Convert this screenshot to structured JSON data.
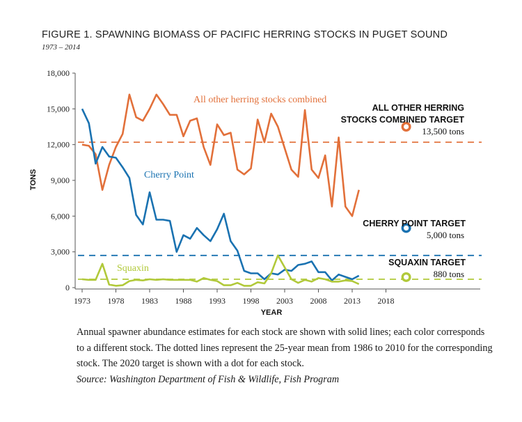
{
  "figure": {
    "title": "FIGURE 1. SPAWNING BIOMASS OF PACIFIC HERRING STOCKS IN PUGET SOUND",
    "subtitle": "1973 – 2014",
    "caption": "Annual spawner abundance estimates for each stock are shown with solid lines; each color corresponds to a different stock. The dotted lines represent the 25-year mean from 1986 to 2010 for the corresponding stock. The 2020 target is shown with a dot for each stock.",
    "source": "Source: Washington Department of Fish & Wildlife, Fish Program"
  },
  "chart_data": {
    "type": "line",
    "title": "FIGURE 1. SPAWNING BIOMASS OF PACIFIC HERRING STOCKS IN PUGET SOUND",
    "xlabel": "YEAR",
    "ylabel": "TONS",
    "xlim": [
      1973,
      2021
    ],
    "ylim": [
      0,
      18000
    ],
    "xticks": [
      "1973",
      "1978",
      "1983",
      "1988",
      "1993",
      "1998",
      "2003",
      "2008",
      "2013",
      "2018"
    ],
    "yticks": [
      "0",
      "3,000",
      "6,000",
      "9,000",
      "12,000",
      "15,000",
      "18,000"
    ],
    "grid": false,
    "series": [
      {
        "name": "All other herring stocks combined",
        "color": "#e2703a",
        "x": [
          1973,
          1974,
          1975,
          1976,
          1977,
          1978,
          1979,
          1980,
          1981,
          1982,
          1983,
          1984,
          1985,
          1986,
          1987,
          1988,
          1989,
          1990,
          1991,
          1992,
          1993,
          1994,
          1995,
          1996,
          1997,
          1998,
          1999,
          2000,
          2001,
          2002,
          2003,
          2004,
          2005,
          2006,
          2007,
          2008,
          2009,
          2010,
          2011,
          2012,
          2013,
          2014
        ],
        "values": [
          12000,
          11900,
          11200,
          8200,
          10300,
          11800,
          12900,
          16200,
          14300,
          14000,
          15000,
          16200,
          15400,
          14500,
          14500,
          12700,
          14000,
          14200,
          11800,
          10300,
          13700,
          12800,
          13000,
          9900,
          9500,
          10000,
          14100,
          12200,
          14600,
          13500,
          11700,
          9900,
          9300,
          14900,
          9900,
          9200,
          11100,
          6800,
          12600,
          6800,
          6000,
          8200
        ],
        "mean": 12200,
        "target_label": "13,500 tons",
        "target_value": 13500,
        "target_name": "ALL OTHER HERRING STOCKS COMBINED TARGET"
      },
      {
        "name": "Cherry Point",
        "color": "#1a72b1",
        "x": [
          1973,
          1974,
          1975,
          1976,
          1977,
          1978,
          1979,
          1980,
          1981,
          1982,
          1983,
          1984,
          1985,
          1986,
          1987,
          1988,
          1989,
          1990,
          1991,
          1992,
          1993,
          1994,
          1995,
          1996,
          1997,
          1998,
          1999,
          2000,
          2001,
          2002,
          2003,
          2004,
          2005,
          2006,
          2007,
          2008,
          2009,
          2010,
          2011,
          2012,
          2013,
          2014
        ],
        "values": [
          15000,
          13800,
          10400,
          11800,
          11000,
          10900,
          10100,
          9200,
          6100,
          5300,
          8000,
          5700,
          5700,
          5600,
          3000,
          4400,
          4100,
          5000,
          4400,
          3900,
          4900,
          6200,
          3900,
          3100,
          1400,
          1200,
          1200,
          700,
          1200,
          1100,
          1500,
          1400,
          1900,
          2000,
          2200,
          1300,
          1300,
          600,
          1100,
          900,
          700,
          1000
        ],
        "mean": 2700,
        "target_label": "5,000 tons",
        "target_value": 5000,
        "target_name": "CHERRY POINT TARGET"
      },
      {
        "name": "Squaxin",
        "color": "#b1c93a",
        "x": [
          1973,
          1974,
          1975,
          1976,
          1977,
          1978,
          1979,
          1980,
          1981,
          1982,
          1983,
          1984,
          1985,
          1986,
          1987,
          1988,
          1989,
          1990,
          1991,
          1992,
          1993,
          1994,
          1995,
          1996,
          1997,
          1998,
          1999,
          2000,
          2001,
          2002,
          2003,
          2004,
          2005,
          2006,
          2007,
          2008,
          2009,
          2010,
          2011,
          2012,
          2013,
          2014
        ],
        "values": [
          700,
          650,
          650,
          2000,
          250,
          150,
          200,
          550,
          650,
          600,
          700,
          650,
          700,
          650,
          650,
          650,
          650,
          500,
          800,
          650,
          550,
          200,
          200,
          400,
          150,
          150,
          450,
          350,
          1200,
          2700,
          1700,
          700,
          400,
          650,
          500,
          800,
          700,
          500,
          500,
          600,
          550,
          300
        ],
        "mean": 700,
        "target_label": "880 tons",
        "target_value": 880,
        "target_name": "SQUAXIN TARGET"
      }
    ]
  }
}
